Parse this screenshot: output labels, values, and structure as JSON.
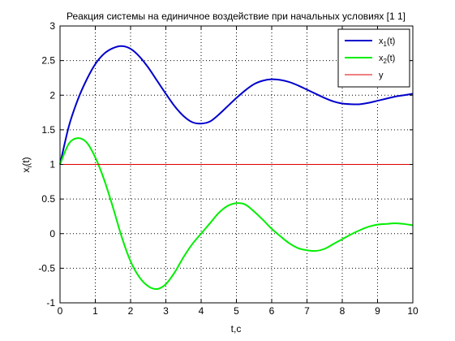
{
  "chart_data": {
    "type": "line",
    "title": "Реакция системы на единичное воздействие при начальных условиях [1 1]",
    "xlabel": "t,c",
    "ylabel": {
      "base": "x",
      "sub": "i",
      "suffix": "(t)"
    },
    "xlim": [
      0,
      10
    ],
    "ylim": [
      -1,
      3
    ],
    "xticks": [
      0,
      1,
      2,
      3,
      4,
      5,
      6,
      7,
      8,
      9,
      10
    ],
    "yticks": [
      -1,
      -0.5,
      0,
      0.5,
      1,
      1.5,
      2,
      2.5,
      3
    ],
    "ytick_labels": [
      "-1",
      "-0.5",
      "0",
      "0.5",
      "1",
      "1.5",
      "2",
      "2.5",
      "3"
    ],
    "grid": true,
    "legend_position": "top-right",
    "series": [
      {
        "name": "x1(t)",
        "legend_label": {
          "base": "x",
          "sub": "1",
          "suffix": "(t)"
        },
        "color": "#0000cc",
        "x": [
          0,
          0.25,
          0.5,
          0.75,
          1.0,
          1.25,
          1.5,
          1.75,
          2.0,
          2.25,
          2.5,
          2.75,
          3.0,
          3.25,
          3.5,
          3.75,
          4.0,
          4.25,
          4.5,
          4.75,
          5.0,
          5.25,
          5.5,
          5.75,
          6.0,
          6.25,
          6.5,
          6.75,
          7.0,
          7.25,
          7.5,
          7.75,
          8.0,
          8.25,
          8.5,
          8.75,
          9.0,
          9.25,
          9.5,
          9.75,
          10.0
        ],
        "y": [
          1.0,
          1.55,
          1.93,
          2.22,
          2.45,
          2.6,
          2.68,
          2.71,
          2.67,
          2.56,
          2.4,
          2.21,
          2.02,
          1.84,
          1.7,
          1.61,
          1.59,
          1.62,
          1.72,
          1.84,
          1.96,
          2.07,
          2.16,
          2.21,
          2.23,
          2.22,
          2.19,
          2.14,
          2.08,
          2.02,
          1.96,
          1.91,
          1.88,
          1.87,
          1.87,
          1.89,
          1.92,
          1.95,
          1.98,
          2.0,
          2.02
        ]
      },
      {
        "name": "x2(t)",
        "legend_label": {
          "base": "x",
          "sub": "2",
          "suffix": "(t)"
        },
        "color": "#00ee00",
        "x": [
          0,
          0.25,
          0.5,
          0.75,
          1.0,
          1.25,
          1.5,
          1.75,
          2.0,
          2.25,
          2.5,
          2.75,
          3.0,
          3.25,
          3.5,
          3.75,
          4.0,
          4.25,
          4.5,
          4.75,
          5.0,
          5.25,
          5.5,
          5.75,
          6.0,
          6.25,
          6.5,
          6.75,
          7.0,
          7.25,
          7.5,
          7.75,
          8.0,
          8.25,
          8.5,
          8.75,
          9.0,
          9.25,
          9.5,
          9.75,
          10.0
        ],
        "y": [
          1.0,
          1.3,
          1.38,
          1.32,
          1.1,
          0.78,
          0.38,
          -0.05,
          -0.4,
          -0.63,
          -0.76,
          -0.8,
          -0.73,
          -0.56,
          -0.34,
          -0.15,
          0.0,
          0.15,
          0.3,
          0.4,
          0.44,
          0.42,
          0.32,
          0.2,
          0.07,
          -0.04,
          -0.14,
          -0.21,
          -0.24,
          -0.25,
          -0.22,
          -0.15,
          -0.08,
          -0.01,
          0.05,
          0.1,
          0.13,
          0.14,
          0.15,
          0.14,
          0.12
        ]
      },
      {
        "name": "y",
        "legend_label": {
          "base": "y",
          "sub": "",
          "suffix": ""
        },
        "color": "#dd0000",
        "x": [
          0,
          10
        ],
        "y": [
          1,
          1
        ]
      }
    ]
  }
}
